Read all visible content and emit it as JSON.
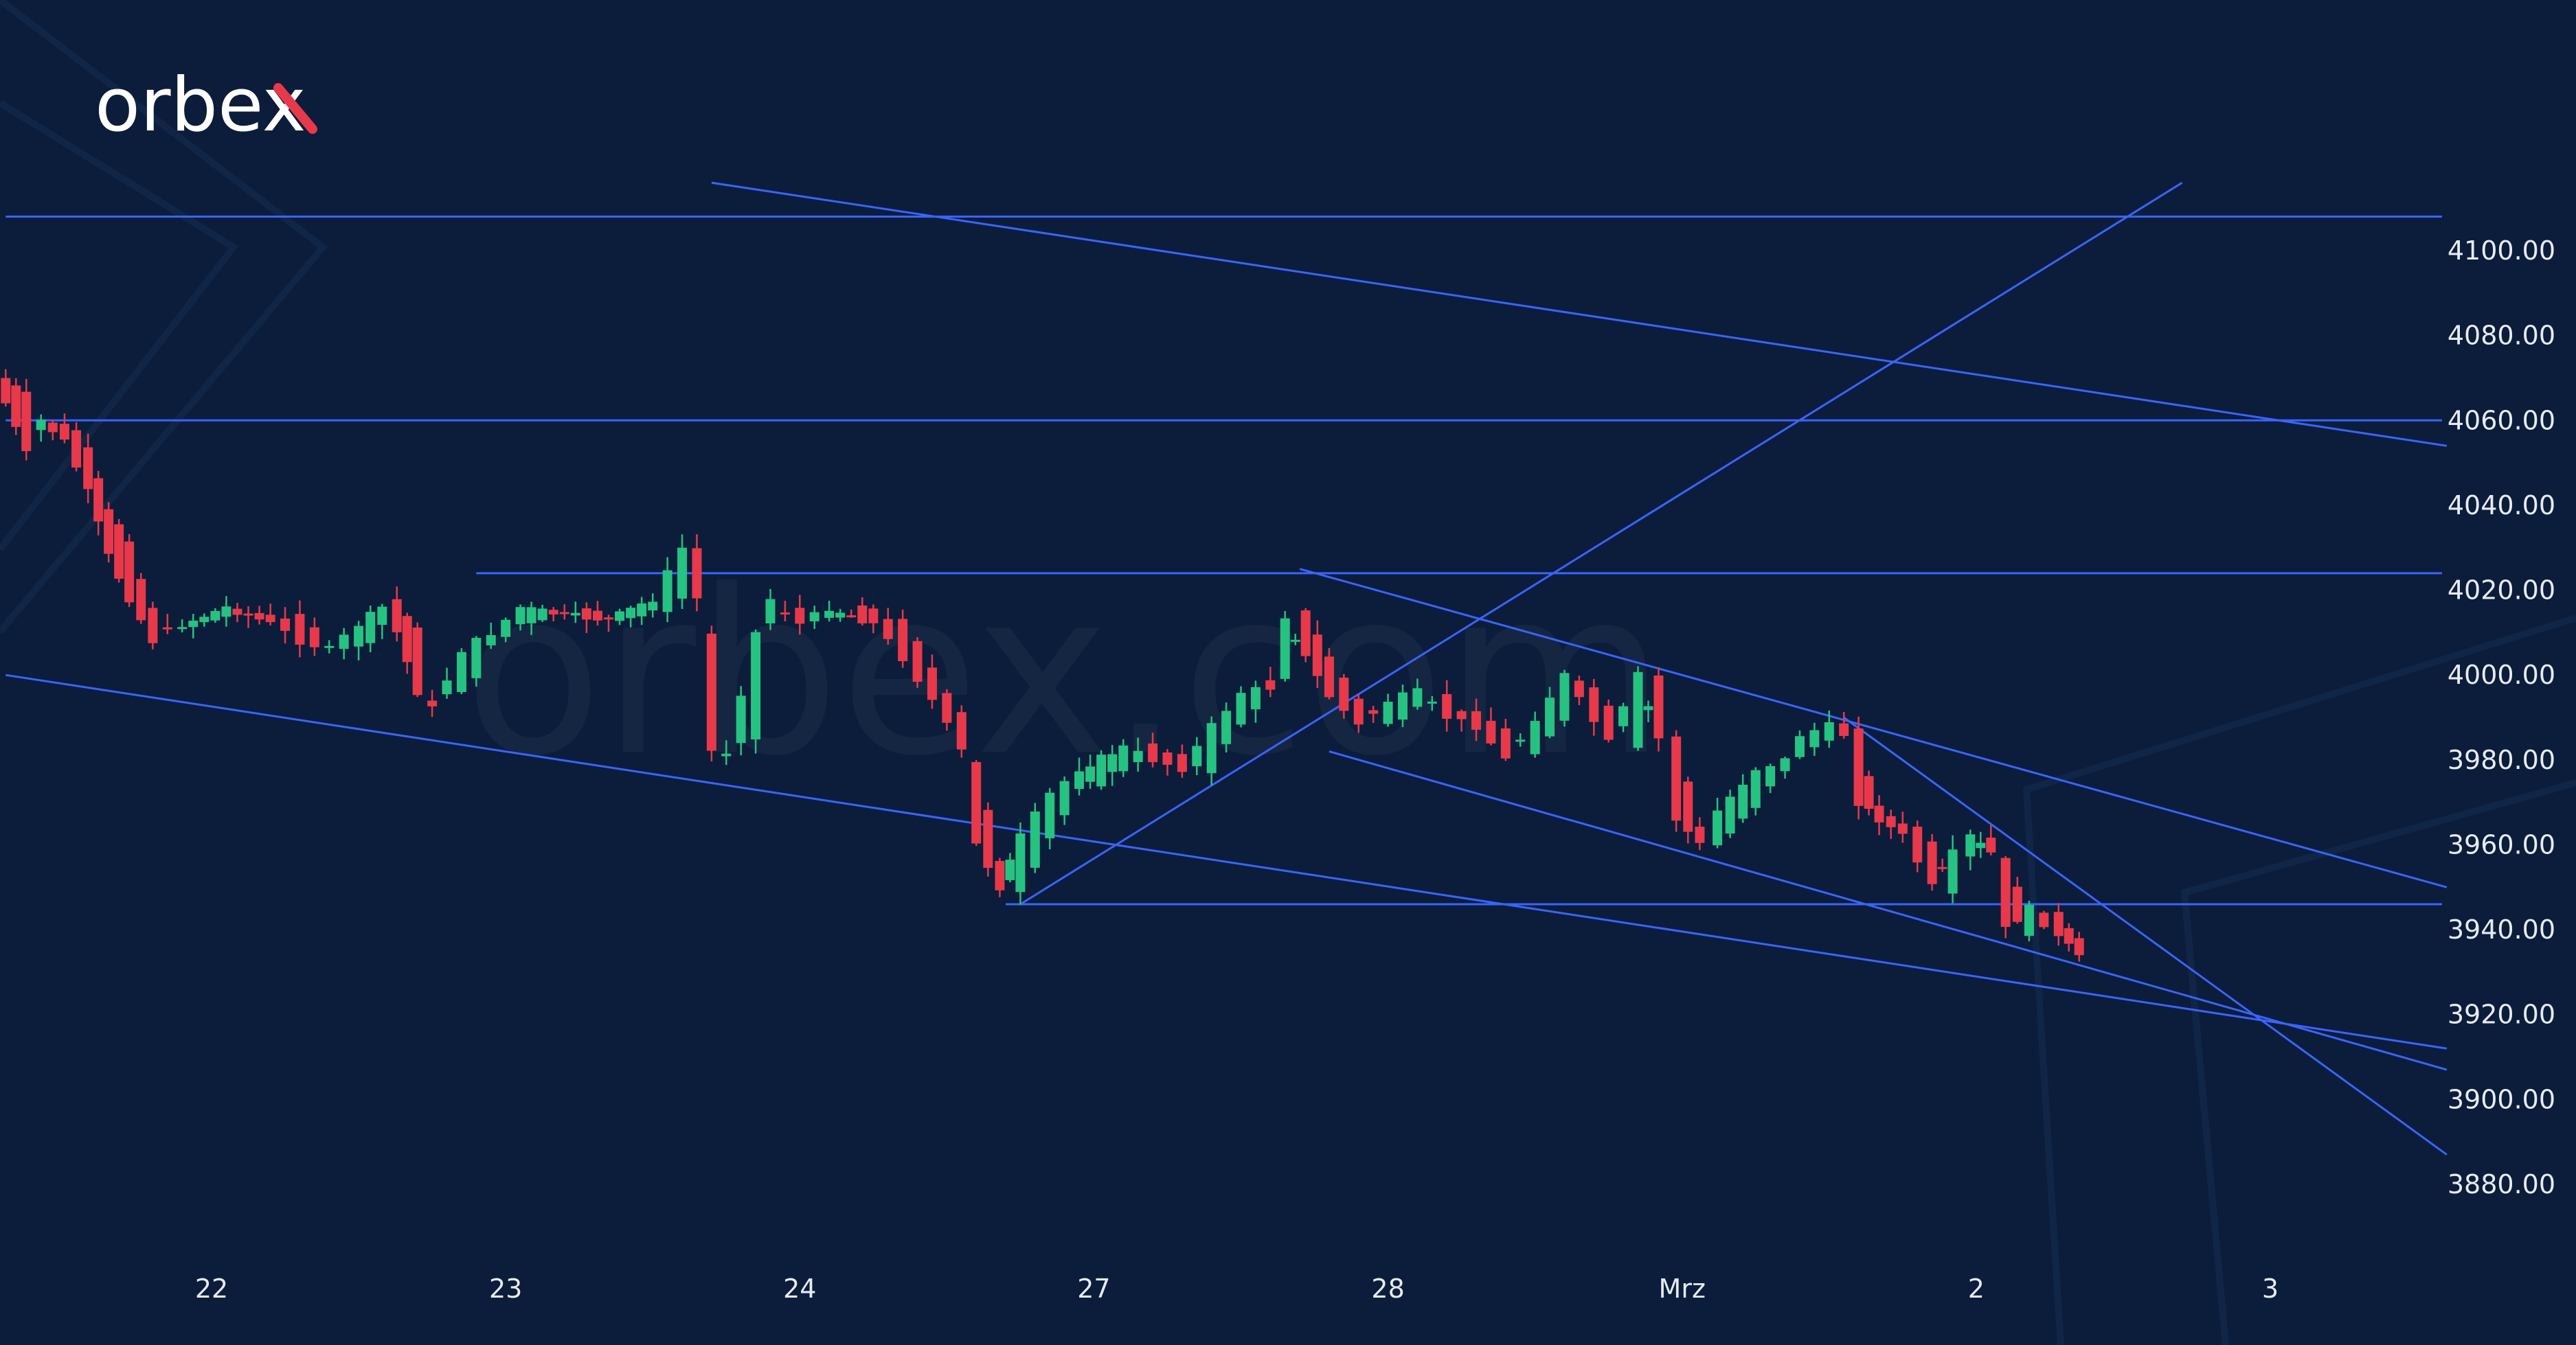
{
  "brand": {
    "logo_text": "orbex",
    "watermark_text": "orbex.com",
    "accent_color": "#e8394b"
  },
  "colors": {
    "background": "#0b1d3a",
    "up_candle": "#26c281",
    "down_candle": "#e8394b",
    "trendline": "#3a64ff",
    "axis_text": "#e6ebf3"
  },
  "chart_data": {
    "type": "candlestick",
    "title": "",
    "xlabel": "",
    "ylabel": "",
    "ylim": [
      3862,
      4138
    ],
    "y_ticks": [
      "4100.00",
      "4080.00",
      "4060.00",
      "4040.00",
      "4020.00",
      "4000.00",
      "3980.00",
      "3960.00",
      "3940.00",
      "3920.00",
      "3900.00",
      "3880.00"
    ],
    "y_tick_values": [
      4100,
      4080,
      4060,
      4040,
      4020,
      4000,
      3980,
      3960,
      3940,
      3920,
      3900,
      3880
    ],
    "x_range": [
      0,
      8.3
    ],
    "x_ticks": [
      {
        "label": "22",
        "x": 0.7
      },
      {
        "label": "23",
        "x": 1.7
      },
      {
        "label": "24",
        "x": 2.7
      },
      {
        "label": "27",
        "x": 3.7
      },
      {
        "label": "28",
        "x": 4.7
      },
      {
        "label": "Mrz",
        "x": 5.7
      },
      {
        "label": "2",
        "x": 6.7
      },
      {
        "label": "3",
        "x": 7.7
      }
    ],
    "candles": [],
    "candle_interval": 0.042,
    "candle_path": [
      [
        0.0,
        4070,
        4064
      ],
      [
        0.07,
        4068,
        4052
      ],
      [
        0.12,
        4058,
        4060
      ],
      [
        0.2,
        4060,
        4055
      ],
      [
        0.28,
        4055,
        4043
      ],
      [
        0.35,
        4040,
        4028
      ],
      [
        0.42,
        4030,
        4018
      ],
      [
        0.5,
        4015,
        4008
      ],
      [
        0.6,
        4010,
        4012
      ],
      [
        0.75,
        4014,
        4016
      ],
      [
        0.9,
        4015,
        4012
      ],
      [
        1.0,
        4013,
        4008
      ],
      [
        1.1,
        4008,
        4006
      ],
      [
        1.2,
        4006,
        4012
      ],
      [
        1.28,
        4012,
        4016
      ],
      [
        1.33,
        4018,
        4010
      ],
      [
        1.4,
        4010,
        3996
      ],
      [
        1.45,
        3995,
        3992
      ],
      [
        1.55,
        3995,
        4006
      ],
      [
        1.65,
        4006,
        4010
      ],
      [
        1.75,
        4012,
        4016
      ],
      [
        1.9,
        4016,
        4014
      ],
      [
        2.05,
        4014,
        4013
      ],
      [
        2.2,
        4014,
        4018
      ],
      [
        2.3,
        4018,
        4030
      ],
      [
        2.35,
        4030,
        4018
      ],
      [
        2.4,
        4010,
        3982
      ],
      [
        2.45,
        3980,
        3982
      ],
      [
        2.55,
        3985,
        4010
      ],
      [
        2.6,
        4012,
        4018
      ],
      [
        2.7,
        4016,
        4012
      ],
      [
        2.8,
        4012,
        4016
      ],
      [
        2.95,
        4016,
        4012
      ],
      [
        3.05,
        4012,
        4004
      ],
      [
        3.15,
        4002,
        3994
      ],
      [
        3.25,
        3992,
        3982
      ],
      [
        3.3,
        3980,
        3960
      ],
      [
        3.38,
        3955,
        3950
      ],
      [
        3.45,
        3950,
        3962
      ],
      [
        3.55,
        3962,
        3972
      ],
      [
        3.65,
        3972,
        3978
      ],
      [
        3.8,
        3978,
        3983
      ],
      [
        3.9,
        3983,
        3980
      ],
      [
        4.0,
        3980,
        3978
      ],
      [
        4.1,
        3978,
        3988
      ],
      [
        4.2,
        3988,
        3996
      ],
      [
        4.3,
        3998,
        3997
      ],
      [
        4.35,
        3998,
        4014
      ],
      [
        4.42,
        4016,
        4004
      ],
      [
        4.5,
        4004,
        3995
      ],
      [
        4.6,
        3995,
        3988
      ],
      [
        4.7,
        3988,
        3994
      ],
      [
        4.8,
        3994,
        3996
      ],
      [
        4.9,
        3995,
        3990
      ],
      [
        5.0,
        3990,
        3988
      ],
      [
        5.1,
        3988,
        3980
      ],
      [
        5.2,
        3980,
        3990
      ],
      [
        5.3,
        3990,
        4000
      ],
      [
        5.35,
        4000,
        3994
      ],
      [
        5.45,
        3994,
        3984
      ],
      [
        5.55,
        3984,
        4000
      ],
      [
        5.62,
        4000,
        3985
      ],
      [
        5.68,
        3985,
        3966
      ],
      [
        5.76,
        3965,
        3960
      ],
      [
        5.82,
        3960,
        3968
      ],
      [
        5.95,
        3968,
        3978
      ],
      [
        6.05,
        3978,
        3980
      ],
      [
        6.1,
        3980,
        3986
      ],
      [
        6.2,
        3986,
        3988
      ],
      [
        6.25,
        3988,
        3986
      ],
      [
        6.3,
        3986,
        3970
      ],
      [
        6.37,
        3968,
        3966
      ],
      [
        6.45,
        3966,
        3962
      ],
      [
        6.55,
        3962,
        3950
      ],
      [
        6.62,
        3950,
        3958
      ],
      [
        6.68,
        3958,
        3962
      ],
      [
        6.75,
        3962,
        3958
      ],
      [
        6.8,
        3958,
        3940
      ],
      [
        6.88,
        3940,
        3945
      ],
      [
        6.98,
        3945,
        3938
      ],
      [
        7.05,
        3938,
        3934
      ]
    ],
    "levels": {
      "horizontal": [
        {
          "y": 4108,
          "x1": 0,
          "x2": 8.3
        },
        {
          "y": 4060,
          "x1": 0,
          "x2": 8.3
        },
        {
          "y": 4024,
          "x1": 1.6,
          "x2": 8.3
        },
        {
          "y": 3946,
          "x1": 3.4,
          "x2": 8.3
        }
      ],
      "trendlines": [
        {
          "x1": 2.4,
          "y1": 4116,
          "x2": 8.3,
          "y2": 4054
        },
        {
          "x1": 0.0,
          "y1": 4000,
          "x2": 8.3,
          "y2": 3912
        },
        {
          "x1": 3.45,
          "y1": 3946,
          "x2": 7.4,
          "y2": 4116
        },
        {
          "x1": 4.4,
          "y1": 4025,
          "x2": 8.3,
          "y2": 3950
        },
        {
          "x1": 4.5,
          "y1": 3982,
          "x2": 8.3,
          "y2": 3907
        },
        {
          "x1": 6.25,
          "y1": 3990,
          "x2": 8.3,
          "y2": 3887
        }
      ]
    },
    "grid": false,
    "legend": "none"
  }
}
